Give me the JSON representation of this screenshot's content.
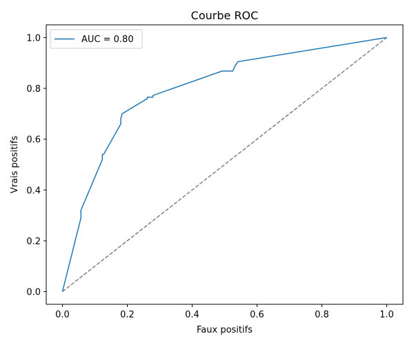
{
  "chart_data": {
    "type": "line",
    "title": "Courbe ROC",
    "xlabel": "Faux positifs",
    "ylabel": "Vrais positifs",
    "xlim": [
      -0.05,
      1.05
    ],
    "ylim": [
      -0.05,
      1.05
    ],
    "xticks": [
      0.0,
      0.2,
      0.4,
      0.6,
      0.8,
      1.0
    ],
    "yticks": [
      0.0,
      0.2,
      0.4,
      0.6,
      0.8,
      1.0
    ],
    "xtick_labels": [
      "0.0",
      "0.2",
      "0.4",
      "0.6",
      "0.8",
      "1.0"
    ],
    "ytick_labels": [
      "0.0",
      "0.2",
      "0.4",
      "0.6",
      "0.8",
      "1.0"
    ],
    "grid": false,
    "legend": {
      "position": "top-left"
    },
    "series": [
      {
        "name": "AUC = 0.80",
        "color": "#1f77b4",
        "style": "solid",
        "x": [
          0.0,
          0.057,
          0.057,
          0.123,
          0.123,
          0.127,
          0.18,
          0.18,
          0.184,
          0.262,
          0.262,
          0.279,
          0.279,
          0.492,
          0.525,
          0.533,
          0.541,
          1.0
        ],
        "y": [
          0.0,
          0.29,
          0.32,
          0.52,
          0.54,
          0.54,
          0.66,
          0.68,
          0.7,
          0.76,
          0.765,
          0.765,
          0.772,
          0.868,
          0.868,
          0.89,
          0.905,
          1.0
        ]
      },
      {
        "name": "",
        "color": "#808080",
        "style": "dashed",
        "x": [
          0.0,
          1.0
        ],
        "y": [
          0.0,
          1.0
        ]
      }
    ]
  }
}
